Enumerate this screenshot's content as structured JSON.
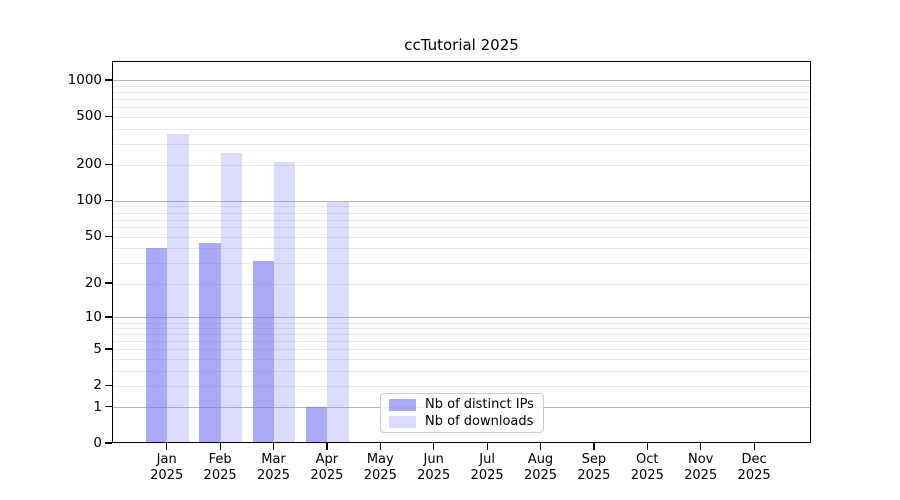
{
  "title": "ccTutorial 2025",
  "chart_data": {
    "type": "bar",
    "title": "ccTutorial 2025",
    "xlabel": "",
    "ylabel": "",
    "categories": [
      "Jan 2025",
      "Feb 2025",
      "Mar 2025",
      "Apr 2025",
      "May 2025",
      "Jun 2025",
      "Jul 2025",
      "Aug 2025",
      "Sep 2025",
      "Oct 2025",
      "Nov 2025",
      "Dec 2025"
    ],
    "series": [
      {
        "name": "Nb of distinct IPs",
        "color": "rgba(106,106,240,0.58)",
        "values": [
          40,
          44,
          31,
          1,
          0,
          0,
          0,
          0,
          0,
          0,
          0,
          0
        ]
      },
      {
        "name": "Nb of downloads",
        "color": "rgba(106,106,240,0.24)",
        "values": [
          360,
          250,
          210,
          97,
          0,
          0,
          0,
          0,
          0,
          0,
          0,
          0
        ]
      }
    ],
    "yscale": "log1p",
    "ylim": [
      0,
      1435
    ],
    "yticks": [
      0,
      1,
      2,
      5,
      10,
      20,
      50,
      100,
      200,
      500,
      1000
    ],
    "minor_gridlines": [
      2,
      3,
      4,
      5,
      6,
      7,
      8,
      9,
      20,
      30,
      40,
      50,
      60,
      70,
      80,
      90,
      200,
      300,
      400,
      500,
      600,
      700,
      800,
      900
    ],
    "major_gridlines": [
      1,
      10,
      100,
      1000
    ],
    "grid": true,
    "legend_position": "lower-center",
    "colors": {
      "bar_base": "#6a6af0",
      "major_grid": "#b4b4b4",
      "minor_grid": "#e9e9e9",
      "spine": "#000000",
      "background": "#ffffff"
    }
  }
}
